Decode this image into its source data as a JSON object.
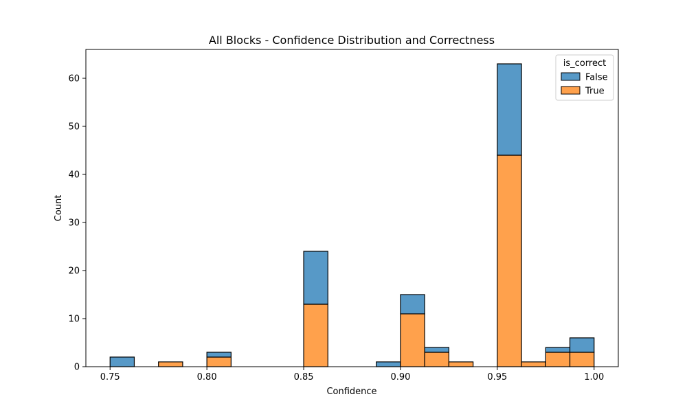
{
  "chart_data": {
    "type": "bar",
    "stacked": true,
    "title": "All Blocks - Confidence Distribution and Correctness",
    "xlabel": "Confidence",
    "ylabel": "Count",
    "xlim": [
      0.7375,
      1.0125
    ],
    "ylim": [
      0,
      66
    ],
    "xticks": [
      "0.75",
      "0.80",
      "0.85",
      "0.90",
      "0.95",
      "1.00"
    ],
    "yticks": [
      "0",
      "10",
      "20",
      "30",
      "40",
      "50",
      "60"
    ],
    "bin_width": 0.0125,
    "bins": [
      0.75,
      0.7625,
      0.775,
      0.7875,
      0.8,
      0.8125,
      0.825,
      0.8375,
      0.85,
      0.8625,
      0.875,
      0.8875,
      0.9,
      0.9125,
      0.925,
      0.9375,
      0.95,
      0.9625,
      0.975,
      0.9875
    ],
    "legend": {
      "title": "is_correct",
      "position": "top-right"
    },
    "series": [
      {
        "name": "True",
        "color": "#ffa14c",
        "values": [
          0,
          0,
          1,
          0,
          2,
          0,
          0,
          0,
          13,
          0,
          0,
          0,
          11,
          3,
          1,
          0,
          44,
          1,
          3,
          3
        ]
      },
      {
        "name": "False",
        "color": "#5799c7",
        "values": [
          2,
          0,
          0,
          0,
          1,
          0,
          0,
          0,
          11,
          0,
          0,
          1,
          4,
          1,
          0,
          0,
          19,
          0,
          1,
          3
        ]
      }
    ],
    "legend_order": [
      "False",
      "True"
    ],
    "grid": false
  }
}
